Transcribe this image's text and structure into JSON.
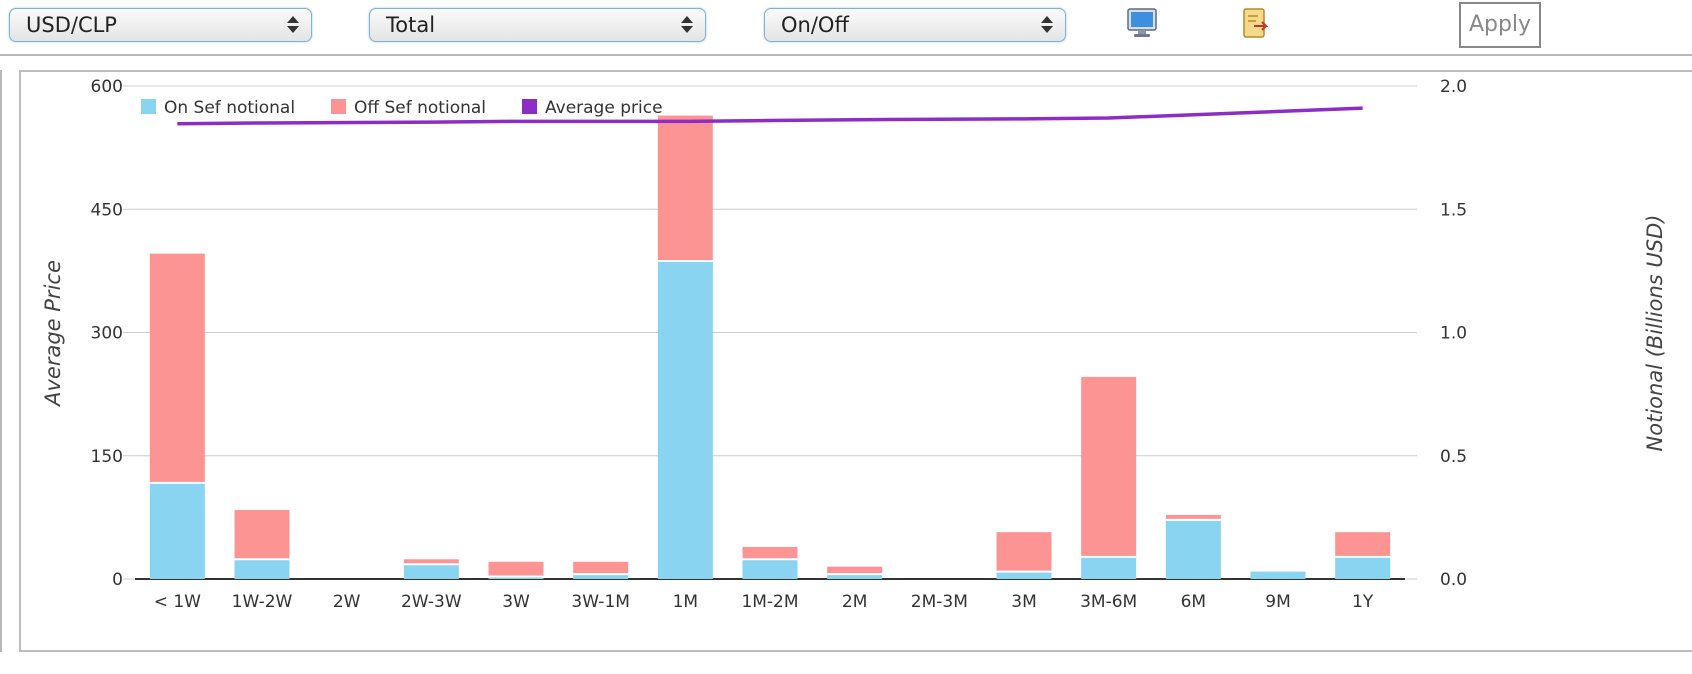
{
  "toolbar": {
    "pair_select": {
      "value": "USD/CLP"
    },
    "total_select": {
      "value": "Total"
    },
    "onoff_select": {
      "value": "On/Off"
    },
    "icons": [
      "monitor-icon",
      "export-icon"
    ],
    "apply_label": "Apply"
  },
  "colors": {
    "on_sef": "#89d4f0",
    "off_sef": "#fd9494",
    "avg_price": "#8e2dc6",
    "grid": "#cccccc",
    "axis": "#333333"
  },
  "chart_data": {
    "type": "bar",
    "stacked": true,
    "categories": [
      "< 1W",
      "1W-2W",
      "2W",
      "2W-3W",
      "3W",
      "3W-1M",
      "1M",
      "1M-2M",
      "2M",
      "2M-3M",
      "3M",
      "3M-6M",
      "6M",
      "9M",
      "1Y"
    ],
    "series": [
      {
        "name": "On Sef notional",
        "axis": "right",
        "values": [
          0.39,
          0.08,
          0,
          0.06,
          0.01,
          0.02,
          1.29,
          0.08,
          0.02,
          0,
          0.03,
          0.09,
          0.24,
          0.03,
          0.09
        ]
      },
      {
        "name": "Off Sef notional",
        "axis": "right",
        "values": [
          0.93,
          0.2,
          0,
          0.02,
          0.06,
          0.05,
          0.59,
          0.05,
          0.03,
          0,
          0.16,
          0.73,
          0.02,
          0,
          0.1
        ]
      },
      {
        "name": "Average price",
        "type": "line",
        "axis": "left",
        "values": [
          554,
          555,
          null,
          556,
          557,
          557,
          557,
          558,
          559,
          null,
          560,
          561,
          null,
          null,
          573
        ]
      }
    ],
    "ylabel": "Average Price",
    "y2label": "Notional (Billions USD)",
    "ylim": [
      0,
      600
    ],
    "y2lim": [
      0,
      2.0
    ],
    "yticks": [
      "0",
      "150",
      "300",
      "450",
      "600"
    ],
    "y2ticks": [
      "0.0",
      "0.5",
      "1.0",
      "1.5",
      "2.0"
    ],
    "grid": true,
    "legend": "top-left"
  }
}
